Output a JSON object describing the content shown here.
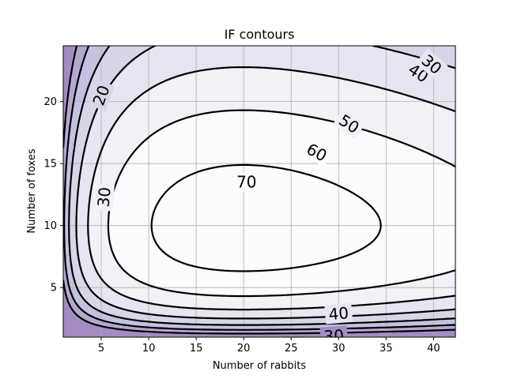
{
  "chart_data": {
    "type": "contour",
    "title": "IF contours",
    "xlabel": "Number of rabbits",
    "ylabel": "Number of foxes",
    "xlim": [
      1,
      42.3
    ],
    "ylim": [
      1,
      24.5
    ],
    "xticks": [
      5,
      10,
      15,
      20,
      25,
      30,
      35,
      40
    ],
    "yticks": [
      5,
      10,
      15,
      20
    ],
    "grid": true,
    "filled": true,
    "colormap": "Purples",
    "fill_colors": [
      "#a48bc3",
      "#b4a8d1",
      "#c4c2e0",
      "#d7d6e8",
      "#e6e5f1",
      "#f2f1f7",
      "#fcfbfd"
    ],
    "line_color": "#000000",
    "levels": [
      10,
      20,
      30,
      40,
      50,
      60,
      70
    ],
    "equilibrium": {
      "x": 20,
      "y": 10
    },
    "labels": [
      {
        "text": "20",
        "x": 5,
        "y": 20.5,
        "rot": -70
      },
      {
        "text": "30",
        "x": 5.3,
        "y": 12.3,
        "rot": -85
      },
      {
        "text": "70",
        "x": 20.3,
        "y": 13.5,
        "rot": 0
      },
      {
        "text": "60",
        "x": 27.7,
        "y": 15.9,
        "rot": 28
      },
      {
        "text": "50",
        "x": 31.1,
        "y": 18.2,
        "rot": 33
      },
      {
        "text": "40",
        "x": 38.4,
        "y": 22.3,
        "rot": 33
      },
      {
        "text": "30",
        "x": 39.8,
        "y": 23.0,
        "rot": 40
      },
      {
        "text": "40",
        "x": 30.0,
        "y": 2.9,
        "rot": -5
      },
      {
        "text": "30",
        "x": 29.5,
        "y": 1.1,
        "rot": -4
      }
    ]
  }
}
